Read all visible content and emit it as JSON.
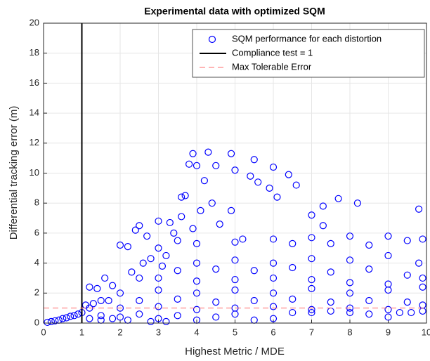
{
  "chart_data": {
    "type": "scatter",
    "title": "Experimental data with optimized SQM",
    "x_label": "Highest Metric / MDE",
    "y_label": "Differential tracking error (m)",
    "xlim": [
      0,
      10
    ],
    "ylim": [
      0,
      20
    ],
    "xticks": [
      0,
      1,
      2,
      3,
      4,
      5,
      6,
      7,
      8,
      9,
      10
    ],
    "yticks": [
      0,
      2,
      4,
      6,
      8,
      10,
      12,
      14,
      16,
      18,
      20
    ],
    "grid": true,
    "legend": "upper-right",
    "series": [
      {
        "name": "SQM performance for each distortion",
        "color": "#0000ff",
        "style": "circle",
        "x": [
          0.1,
          0.2,
          0.3,
          0.4,
          0.5,
          0.6,
          0.7,
          0.8,
          0.9,
          1.0,
          1.1,
          1.2,
          1.3,
          1.5,
          1.2,
          1.4,
          1.6,
          1.8,
          2.0,
          2.2,
          2.4,
          2.5,
          2.7,
          3.0,
          3.3,
          3.6,
          3.7,
          3.6,
          3.8,
          3.9,
          4.0,
          4.2,
          4.3,
          4.5,
          4.9,
          5.0,
          5.5,
          5.4,
          6.0,
          6.4,
          5.6,
          5.9,
          6.1,
          6.6,
          7.0,
          7.3,
          7.7,
          7.3,
          8.2,
          9.8,
          4.1,
          4.4,
          4.9,
          4.6,
          5.2,
          6.0,
          7.0,
          8.0,
          9.0,
          9.9,
          3.0,
          3.5,
          4.0,
          5.0,
          6.5,
          7.5,
          8.5,
          9.5,
          2.8,
          3.2,
          4.0,
          5.0,
          6.0,
          7.0,
          8.0,
          9.0,
          9.8,
          3.5,
          4.5,
          5.5,
          6.5,
          7.5,
          8.5,
          9.5,
          2.5,
          3.0,
          4.0,
          5.0,
          6.0,
          7.0,
          8.0,
          9.0,
          9.9,
          2.0,
          3.0,
          4.0,
          5.0,
          6.0,
          7.0,
          8.0,
          9.0,
          9.9,
          1.7,
          2.5,
          3.5,
          4.5,
          5.5,
          6.5,
          7.5,
          8.5,
          9.5,
          2.0,
          3.0,
          4.0,
          5.0,
          6.0,
          7.0,
          8.0,
          9.0,
          9.9,
          1.5,
          2.0,
          2.5,
          3.0,
          3.5,
          4.0,
          4.5,
          5.0,
          5.5,
          6.0,
          6.5,
          7.0,
          7.5,
          8.0,
          8.5,
          9.0,
          9.3,
          9.6,
          9.9,
          1.2,
          1.5,
          1.8,
          2.2,
          2.8,
          3.2,
          2.3,
          2.6,
          3.1,
          3.4,
          3.9
        ],
        "values": [
          0.05,
          0.1,
          0.15,
          0.2,
          0.3,
          0.35,
          0.45,
          0.5,
          0.6,
          0.7,
          1.2,
          1.0,
          1.3,
          1.5,
          2.4,
          2.3,
          3.0,
          2.5,
          5.2,
          5.1,
          6.2,
          6.5,
          5.8,
          6.8,
          6.7,
          7.1,
          8.5,
          8.4,
          10.6,
          11.3,
          10.5,
          9.5,
          11.4,
          10.5,
          11.3,
          10.2,
          10.9,
          9.8,
          10.4,
          9.9,
          9.4,
          9.0,
          8.4,
          9.2,
          7.2,
          7.8,
          8.3,
          6.5,
          8.0,
          7.6,
          7.5,
          8.0,
          7.5,
          6.6,
          5.6,
          5.6,
          5.7,
          5.8,
          5.8,
          5.6,
          5.0,
          5.5,
          5.3,
          5.4,
          5.3,
          5.3,
          5.2,
          5.5,
          4.3,
          4.5,
          4.0,
          4.2,
          4.0,
          4.3,
          4.2,
          4.5,
          4.0,
          3.5,
          3.6,
          3.5,
          3.7,
          3.4,
          3.6,
          3.2,
          3.0,
          3.0,
          2.8,
          2.9,
          3.0,
          2.9,
          2.7,
          2.6,
          3.0,
          2.0,
          2.2,
          2.0,
          2.2,
          2.0,
          2.3,
          2.0,
          2.2,
          2.4,
          1.5,
          1.5,
          1.6,
          1.4,
          1.5,
          1.6,
          1.4,
          1.5,
          1.4,
          1.0,
          1.1,
          0.9,
          1.0,
          1.1,
          0.9,
          1.0,
          0.9,
          1.2,
          0.5,
          0.4,
          0.6,
          0.3,
          0.5,
          0.2,
          0.4,
          0.6,
          0.2,
          0.3,
          0.7,
          0.7,
          0.8,
          0.7,
          0.6,
          0.4,
          0.7,
          0.7,
          0.8,
          0.3,
          0.2,
          0.3,
          0.2,
          0.1,
          0.1,
          3.4,
          4.0,
          3.8,
          6.0,
          6.3
        ]
      },
      {
        "name": "Compliance test = 1",
        "color": "#000000",
        "style": "line",
        "x": [
          1,
          1
        ],
        "values": [
          0,
          20
        ]
      },
      {
        "name": "Max Tolerable Error",
        "color": "#ff6b6b",
        "style": "dashed",
        "x": [
          0,
          10
        ],
        "values": [
          1,
          1
        ]
      }
    ]
  }
}
